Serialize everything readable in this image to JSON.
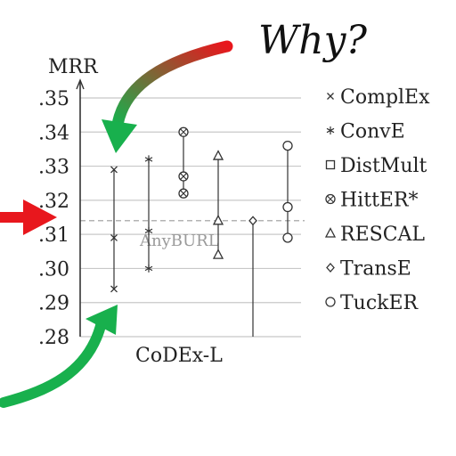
{
  "chart_data": {
    "type": "scatter",
    "title": "",
    "xlabel": "CoDEx-L",
    "ylabel": "MRR",
    "ylim": [
      0.28,
      0.355
    ],
    "y_ticks": [
      0.28,
      0.29,
      0.3,
      0.31,
      0.32,
      0.33,
      0.34,
      0.35
    ],
    "y_tick_labels": [
      ".28",
      ".29",
      ".30",
      ".31",
      ".32",
      ".33",
      ".34",
      ".35"
    ],
    "grid": true,
    "legend_position": "right",
    "reference_line": {
      "label": "AnyBURL",
      "value": 0.314
    },
    "series": [
      {
        "name": "ComplEx",
        "marker": "cross",
        "values": [
          0.294,
          0.309,
          0.329
        ]
      },
      {
        "name": "ConvE",
        "marker": "star",
        "values": [
          0.3,
          0.311,
          0.332
        ]
      },
      {
        "name": "DistMult",
        "marker": "square",
        "values": []
      },
      {
        "name": "HittER*",
        "marker": "circle-cross",
        "values": [
          0.322,
          0.327,
          0.34
        ]
      },
      {
        "name": "RESCAL",
        "marker": "triangle",
        "values": [
          0.304,
          0.314,
          0.333
        ]
      },
      {
        "name": "TransE",
        "marker": "diamond",
        "values": [
          0.28,
          0.314
        ]
      },
      {
        "name": "TuckER",
        "marker": "circle",
        "values": [
          0.309,
          0.318,
          0.336
        ]
      }
    ]
  },
  "annotation": {
    "question": "Why?"
  },
  "colors": {
    "arrow_red": "#e8171d",
    "arrow_green": "#18b04d",
    "grid": "#c8c8c8",
    "axis": "#333333",
    "text": "#222222",
    "reference": "#9a9a9a"
  }
}
